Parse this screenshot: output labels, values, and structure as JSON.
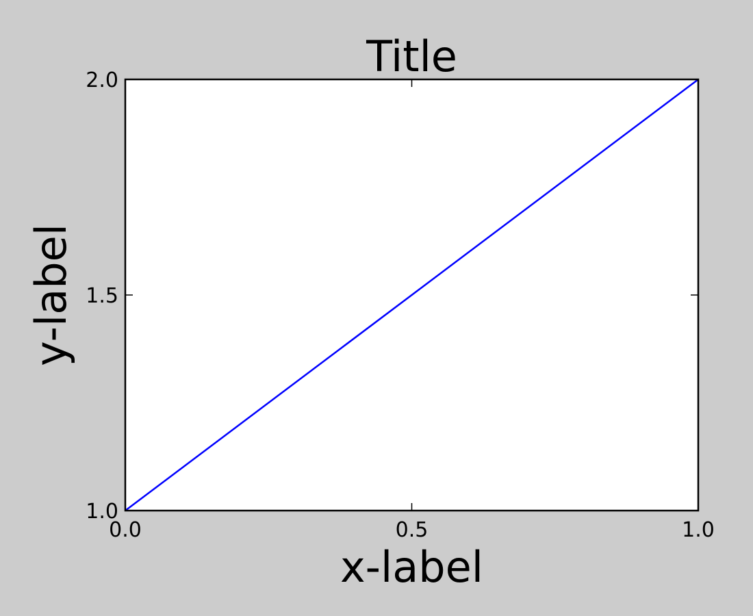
{
  "chart_data": {
    "type": "line",
    "title": "Title",
    "xlabel": "x-label",
    "ylabel": "y-label",
    "xlim": [
      0.0,
      1.0
    ],
    "ylim": [
      1.0,
      2.0
    ],
    "xticks": [
      0.0,
      0.5,
      1.0
    ],
    "xtick_labels": [
      "0.0",
      "0.5",
      "1.0"
    ],
    "yticks": [
      1.0,
      1.5,
      2.0
    ],
    "ytick_labels": [
      "1.0",
      "1.5",
      "2.0"
    ],
    "grid": false,
    "series": [
      {
        "x": [
          0.0,
          1.0
        ],
        "y": [
          1.0,
          2.0
        ],
        "color": "#0000ff"
      }
    ]
  },
  "colors": {
    "figure_background": "#cccccc",
    "axes_background": "#ffffff"
  }
}
